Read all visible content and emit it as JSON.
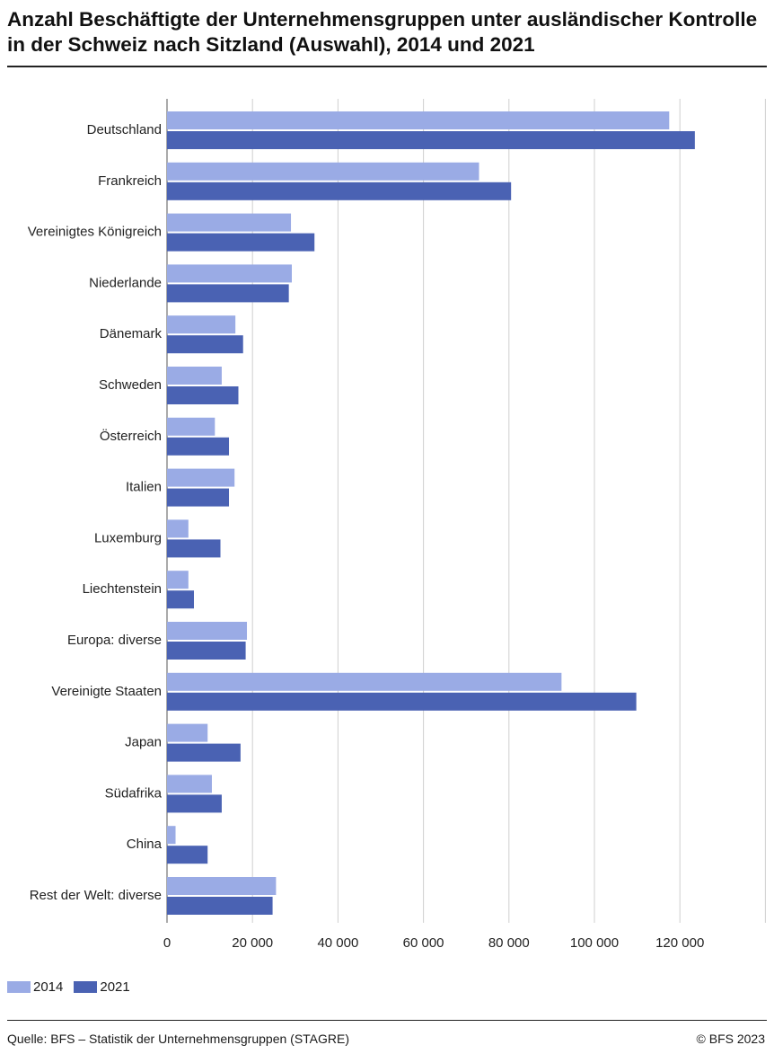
{
  "chart_data": {
    "type": "bar",
    "orientation": "horizontal",
    "title": "Anzahl Beschäftigte der Unternehmensgruppen unter ausländischer Kontrolle in der Schweiz nach Sitzland (Auswahl), 2014 und 2021",
    "categories": [
      "Deutschland",
      "Frankreich",
      "Vereinigtes Königreich",
      "Niederlande",
      "Dänemark",
      "Schweden",
      "Österreich",
      "Italien",
      "Luxemburg",
      "Liechtenstein",
      "Europa: diverse",
      "Vereinigte Staaten",
      "Japan",
      "Südafrika",
      "China",
      "Rest der Welt: diverse"
    ],
    "series": [
      {
        "name": "2014",
        "color": "#9aabe5",
        "values": [
          117500,
          73000,
          29000,
          29200,
          16000,
          12800,
          11200,
          15800,
          5000,
          5000,
          18700,
          92300,
          9500,
          10500,
          2000,
          25500
        ]
      },
      {
        "name": "2021",
        "color": "#4a62b3",
        "values": [
          123500,
          80500,
          34500,
          28500,
          17800,
          16700,
          14500,
          14500,
          12500,
          6300,
          18400,
          109800,
          17200,
          12800,
          9500,
          24700
        ]
      }
    ],
    "xlim": [
      0,
      140000
    ],
    "xticks": [
      0,
      20000,
      40000,
      60000,
      80000,
      100000,
      120000
    ],
    "xtick_labels": [
      "0",
      "20 000",
      "40 000",
      "60 000",
      "80 000",
      "100 000",
      "120 000"
    ],
    "grid": true,
    "legend_position": "bottom-left"
  },
  "source": "Quelle: BFS – Statistik der Unternehmensgruppen (STAGRE)",
  "copyright": "© BFS 2023"
}
